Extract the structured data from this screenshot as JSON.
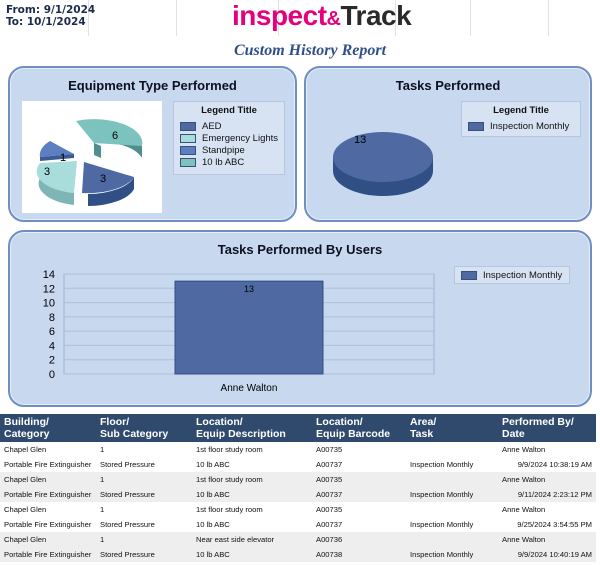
{
  "header": {
    "from_label": "From:",
    "from_date": "9/1/2024",
    "to_label": "To:",
    "to_date": "10/1/2024",
    "logo_part1": "inspect",
    "logo_amp": "&",
    "logo_part2": "Track",
    "report_title": "Custom History Report"
  },
  "colors": {
    "aed": "#4f6aa3",
    "emergency_lights": "#a8dddc",
    "standpipe": "#5c7fc2",
    "abc": "#7cc3c0",
    "inspection_monthly": "#4f6aa3",
    "panel_bg": "#c7d8ef",
    "table_header": "#2f4a6d"
  },
  "panels": {
    "equipment": {
      "title": "Equipment Type Performed",
      "legend_title": "Legend Title",
      "legend": [
        "AED",
        "Emergency Lights",
        "Standpipe",
        "10 lb ABC"
      ]
    },
    "tasks": {
      "title": "Tasks Performed",
      "legend_title": "Legend Title",
      "legend": [
        "Inspection Monthly"
      ]
    },
    "users": {
      "title": "Tasks Performed By Users",
      "legend": [
        "Inspection Monthly"
      ]
    }
  },
  "chart_data": [
    {
      "type": "pie",
      "title": "Equipment Type Performed",
      "categories": [
        "AED",
        "Emergency Lights",
        "Standpipe",
        "10 lb ABC"
      ],
      "values": [
        3,
        3,
        1,
        6
      ],
      "legend_title": "Legend Title"
    },
    {
      "type": "pie",
      "title": "Tasks Performed",
      "categories": [
        "Inspection Monthly"
      ],
      "values": [
        13
      ],
      "legend_title": "Legend Title"
    },
    {
      "type": "bar",
      "title": "Tasks Performed By Users",
      "categories": [
        "Anne Walton"
      ],
      "series": [
        {
          "name": "Inspection Monthly",
          "values": [
            13
          ]
        }
      ],
      "ylim": [
        0,
        14
      ],
      "yticks": [
        "0",
        "2",
        "4",
        "6",
        "8",
        "10",
        "12",
        "14"
      ],
      "grid": true,
      "legend": "right"
    }
  ],
  "table": {
    "headers": [
      [
        "Building/",
        "Category"
      ],
      [
        "Floor/",
        "Sub Category"
      ],
      [
        "Location/",
        "Equip Description"
      ],
      [
        "Location/",
        "Equip Barcode"
      ],
      [
        "Area/",
        "Task"
      ],
      [
        "Performed By/",
        "Date"
      ]
    ],
    "rows": [
      [
        "Chapel Glen",
        "1",
        "1st floor study room",
        "A00735",
        "",
        "Anne Walton"
      ],
      [
        "Portable Fire Extinguisher",
        "Stored Pressure",
        "10 lb ABC",
        "A00737",
        "Inspection Monthly",
        "9/9/2024 10:38:19 AM"
      ],
      [
        "Chapel Glen",
        "1",
        "1st floor study room",
        "A00735",
        "",
        "Anne Walton"
      ],
      [
        "Portable Fire Extinguisher",
        "Stored Pressure",
        "10 lb ABC",
        "A00737",
        "Inspection Monthly",
        "9/11/2024 2:23:12 PM"
      ],
      [
        "Chapel Glen",
        "1",
        "1st floor study room",
        "A00735",
        "",
        "Anne Walton"
      ],
      [
        "Portable Fire Extinguisher",
        "Stored Pressure",
        "10 lb ABC",
        "A00737",
        "Inspection Monthly",
        "9/25/2024 3:54:55 PM"
      ],
      [
        "Chapel Glen",
        "1",
        "Near east side elevator",
        "A00736",
        "",
        "Anne Walton"
      ],
      [
        "Portable Fire Extinguisher",
        "Stored Pressure",
        "10 lb ABC",
        "A00738",
        "Inspection Monthly",
        "9/9/2024 10:40:19 AM"
      ]
    ]
  }
}
